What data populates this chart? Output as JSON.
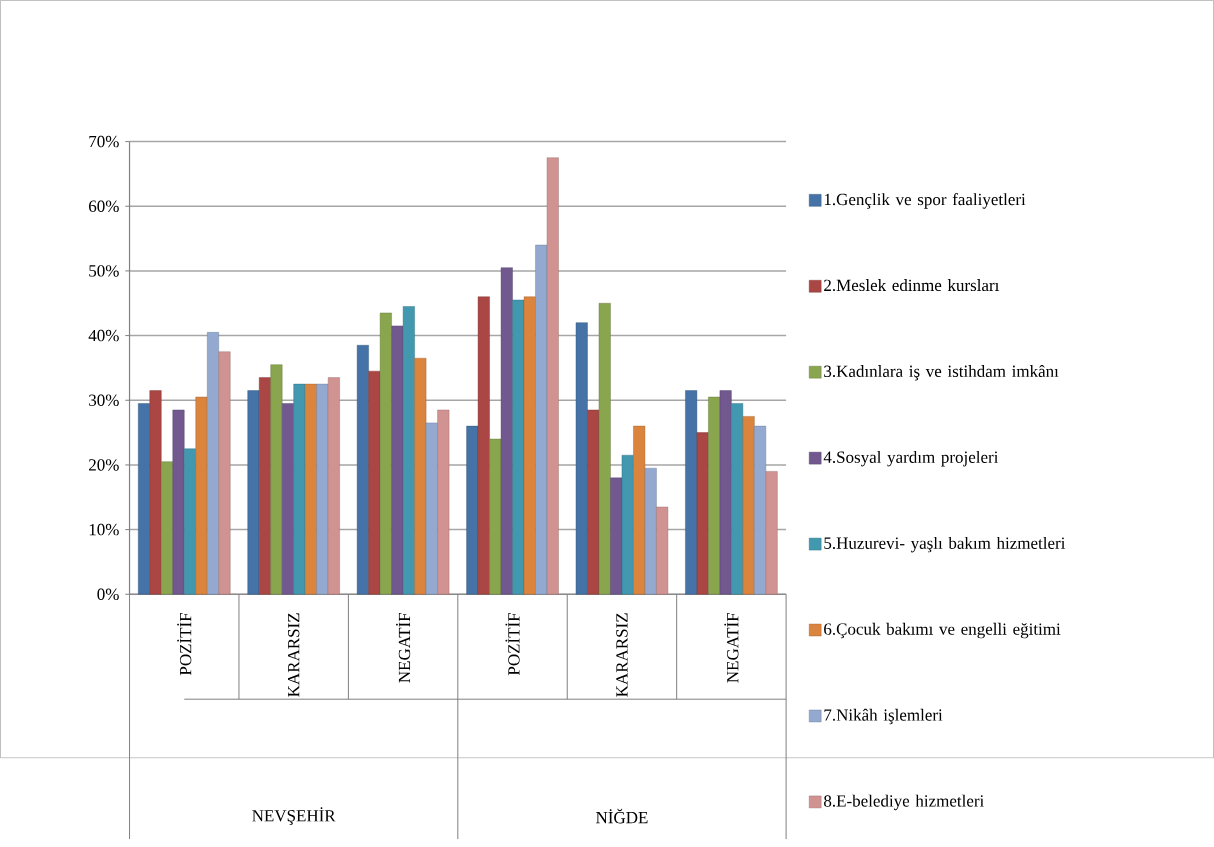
{
  "chart_data": {
    "type": "bar",
    "categories": [
      "POZİTİF",
      "KARARSIZ",
      "NEGATİF",
      "POZİTİF",
      "KARARSIZ",
      "NEGATİF"
    ],
    "annotations": [
      "NEVŞEHİR",
      "NİĞDE"
    ],
    "series": [
      {
        "name": "1.Gençlik ve spor faaliyetleri",
        "color": "#4572a7",
        "values": [
          29.5,
          31.5,
          38.5,
          26,
          42,
          31.5
        ]
      },
      {
        "name": "2.Meslek edinme kursları",
        "color": "#aa4643",
        "values": [
          31.5,
          33.5,
          34.5,
          46,
          28.5,
          25
        ]
      },
      {
        "name": "3.Kadınlara iş ve istihdam imkânı",
        "color": "#89a54e",
        "values": [
          20.5,
          35.5,
          43.5,
          24,
          45,
          30.5
        ]
      },
      {
        "name": "4.Sosyal yardım projeleri",
        "color": "#71588f",
        "values": [
          28.5,
          29.5,
          41.5,
          50.5,
          18,
          31.5
        ]
      },
      {
        "name": "5.Huzurevi- yaşlı bakım hizmetleri",
        "color": "#4198af",
        "values": [
          22.5,
          32.5,
          44.5,
          45.5,
          21.5,
          29.5
        ]
      },
      {
        "name": "6.Çocuk bakımı ve engelli eğitimi",
        "color": "#db843d",
        "values": [
          30.5,
          32.5,
          36.5,
          46,
          26,
          27.5
        ]
      },
      {
        "name": "7.Nikâh işlemleri",
        "color": "#93a9cf",
        "values": [
          40.5,
          32.5,
          26.5,
          54,
          19.5,
          26
        ]
      },
      {
        "name": "8.E-belediye hizmetleri",
        "color": "#d19392",
        "values": [
          37.5,
          33.5,
          28.5,
          67.5,
          13.5,
          19
        ]
      }
    ],
    "ylim": [
      0,
      70
    ],
    "yticks": [
      {
        "value": 0,
        "label": "0%"
      },
      {
        "value": 10,
        "label": "10%"
      },
      {
        "value": 20,
        "label": "20%"
      },
      {
        "value": 30,
        "label": "30%"
      },
      {
        "value": 40,
        "label": "40%"
      },
      {
        "value": 50,
        "label": "50%"
      },
      {
        "value": 60,
        "label": "60%"
      },
      {
        "value": 70,
        "label": "70%"
      }
    ],
    "grid": "y",
    "legend": "right"
  }
}
